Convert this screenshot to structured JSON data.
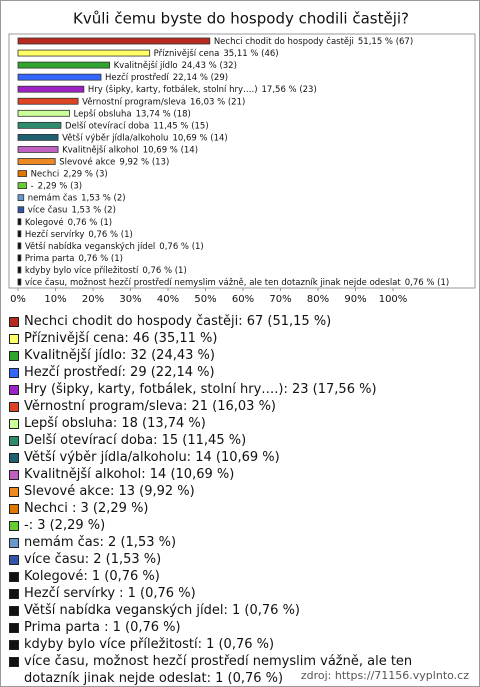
{
  "chart_data": {
    "type": "bar",
    "title": "Kvůli čemu byste do hospody chodili častěji?",
    "categories": [
      "Nechci chodit do hospody častěji",
      "Příznivější cena",
      "Kvalitnější jídlo",
      "Hezčí prostředí",
      "Hry (šipky, karty, fotbálek, stolní hry….)",
      "Věrnostní program/sleva",
      "Lepší obsluha",
      "Delší otevírací doba",
      "Větší výběr jídla/alkoholu",
      "Kvalitnější alkohol",
      "Slevové akce",
      "Nechci",
      "-",
      "nemám čas",
      "více času",
      "Kolegové",
      "Hezčí servírky",
      "Větší nabídka veganských jídel",
      "Prima parta",
      "kdyby bylo více příležitostí",
      "více času, možnost hezčí prostředí nemyslim vážně, ale ten dotazník jinak nejde odeslat"
    ],
    "values": [
      51.15,
      35.11,
      24.43,
      22.14,
      17.56,
      16.03,
      13.74,
      11.45,
      10.69,
      10.69,
      9.92,
      2.29,
      2.29,
      1.53,
      1.53,
      0.76,
      0.76,
      0.76,
      0.76,
      0.76,
      0.76
    ],
    "value_labels": [
      "51,15 % (67)",
      "35,11 % (46)",
      "24,43 % (32)",
      "22,14 % (29)",
      "17,56 % (23)",
      "16,03 % (21)",
      "13,74 % (18)",
      "11,45 % (15)",
      "10,69 % (14)",
      "10,69 % (14)",
      "9,92 % (13)",
      "2,29 % (3)",
      "2,29 % (3)",
      "1,53 % (2)",
      "1,53 % (2)",
      "0,76 % (1)",
      "0,76 % (1)",
      "0,76 % (1)",
      "0,76 % (1)",
      "0,76 % (1)",
      "0,76 % (1)"
    ],
    "colors": [
      "#b8291f",
      "#ffff66",
      "#2fa52f",
      "#3366ff",
      "#a020c8",
      "#dd4422",
      "#ccff99",
      "#2e8b6e",
      "#1f6070",
      "#c060c0",
      "#ee8822",
      "#e07800",
      "#66cc33",
      "#6699cc",
      "#3355aa",
      "#111111",
      "#111111",
      "#111111",
      "#111111",
      "#111111",
      "#111111"
    ],
    "xlim": [
      0,
      100
    ],
    "xticks": [
      {
        "value": 0,
        "label": "0%"
      },
      {
        "value": 10,
        "label": "10%"
      },
      {
        "value": 20,
        "label": "20%"
      },
      {
        "value": 30,
        "label": "30%"
      },
      {
        "value": 40,
        "label": "40%"
      },
      {
        "value": 50,
        "label": "50%"
      },
      {
        "value": 60,
        "label": "60%"
      },
      {
        "value": 70,
        "label": "70%"
      },
      {
        "value": 80,
        "label": "80%"
      },
      {
        "value": 90,
        "label": "90%"
      },
      {
        "value": 100,
        "label": "100%"
      }
    ],
    "legend_entries": [
      "Nechci chodit do hospody častěji: 67 (51,15 %)",
      "Příznivější cena: 46 (35,11 %)",
      "Kvalitnější jídlo: 32 (24,43 %)",
      "Hezčí prostředí: 29 (22,14 %)",
      "Hry (šipky, karty, fotbálek, stolní hry….): 23 (17,56 %)",
      "Věrnostní program/sleva: 21 (16,03 %)",
      "Lepší obsluha: 18 (13,74 %)",
      "Delší otevírací doba: 15 (11,45 %)",
      "Větší výběr jídla/alkoholu: 14 (10,69 %)",
      "Kvalitnější alkohol: 14 (10,69 %)",
      "Slevové akce: 13 (9,92 %)",
      "Nechci : 3 (2,29 %)",
      "-: 3 (2,29 %)",
      "nemám čas: 2 (1,53 %)",
      "více času: 2 (1,53 %)",
      "Kolegové: 1 (0,76 %)",
      "Hezčí servírky : 1 (0,76 %)",
      "Větší nabídka veganských jídel: 1 (0,76 %)",
      "Prima parta : 1 (0,76 %)",
      "kdyby bylo více příležitostí: 1 (0,76 %)",
      "více času, možnost hezčí prostředí nemyslim vážně, ale ten dotazník jinak nejde odeslat: 1 (0,76 %)"
    ],
    "source": "zdroj: https://71156.vyplnto.cz"
  }
}
